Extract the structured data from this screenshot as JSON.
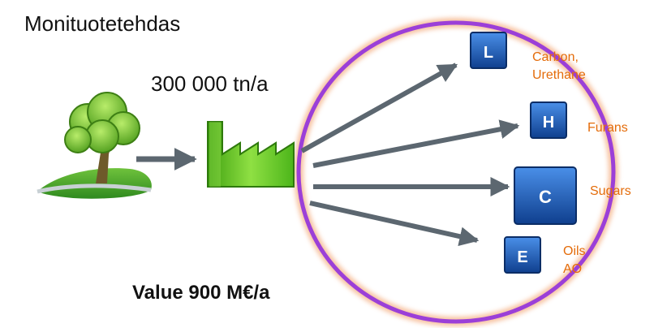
{
  "title": "Monituotetehdas",
  "capacity": "300 000 tn/a",
  "value": "Value 900 M€/a",
  "colors": {
    "circle": "#9b3fd8",
    "arrow": "#5c6770",
    "box": "#1e63c4",
    "product_text": "#e46c0a",
    "factory": "#56c21a",
    "tree": "#7cc632"
  },
  "icons": {
    "source": "tree-on-hill-icon",
    "plant": "factory-icon"
  },
  "products": [
    {
      "letter": "L",
      "lines": [
        "Carbon,",
        "Urethane"
      ]
    },
    {
      "letter": "H",
      "lines": [
        "Furans"
      ]
    },
    {
      "letter": "C",
      "lines": [
        "Sugars"
      ]
    },
    {
      "letter": "E",
      "lines": [
        "Oils",
        "AO"
      ]
    }
  ]
}
